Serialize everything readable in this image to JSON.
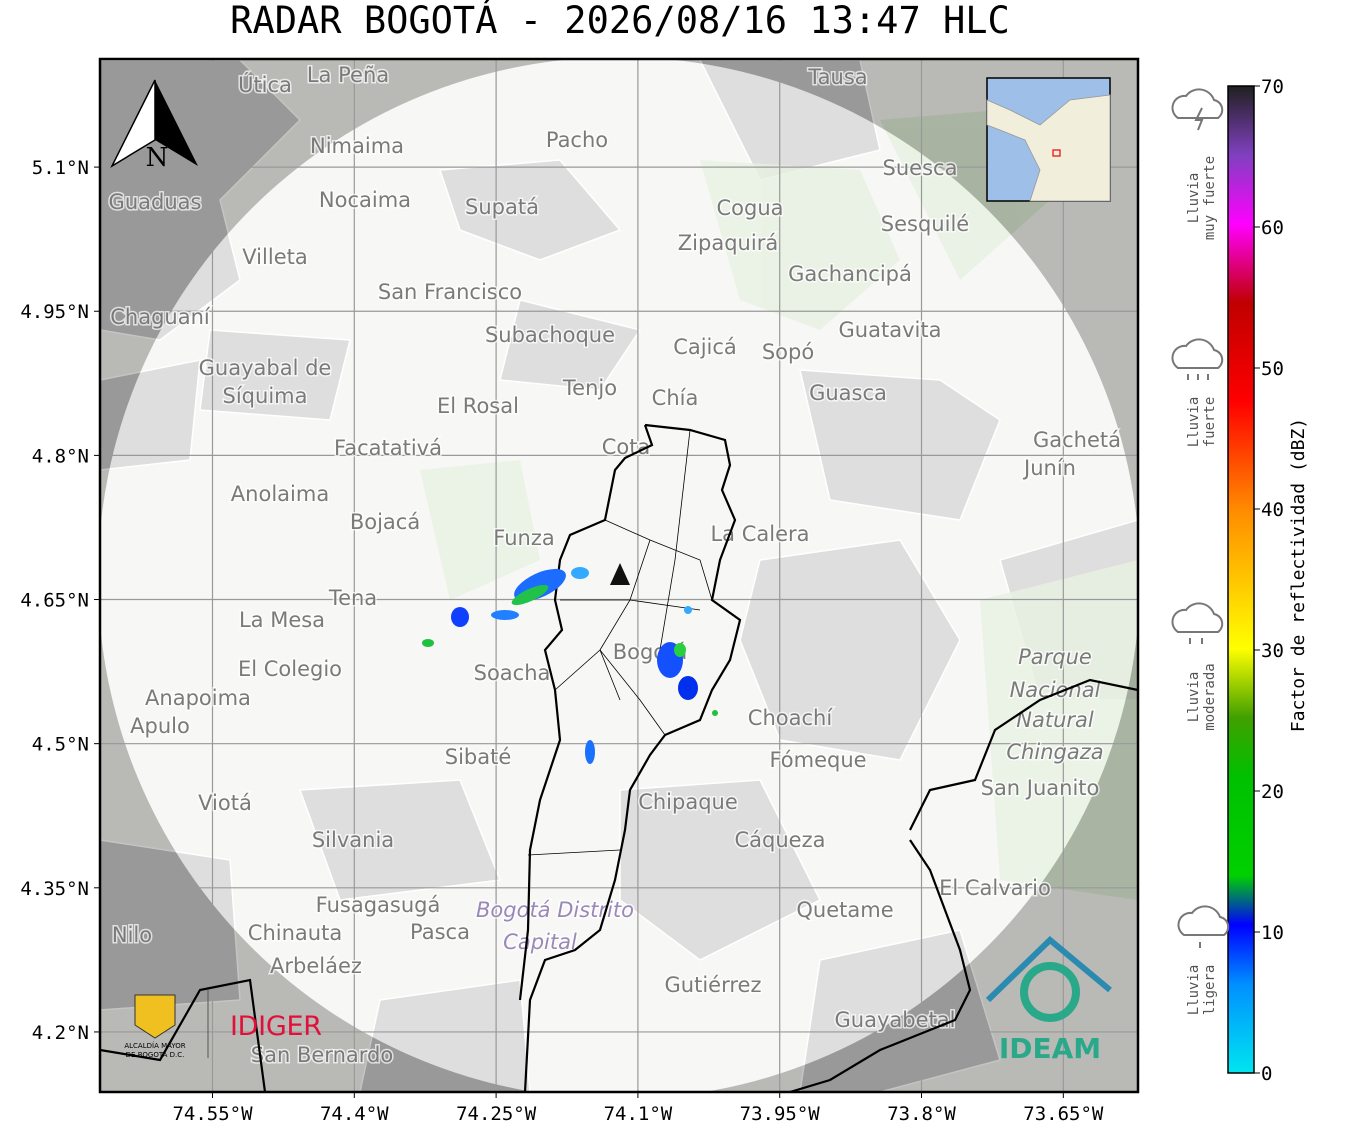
{
  "title": "RADAR BOGOTÁ - 2026/08/16 13:47 HLC",
  "map": {
    "xlim": [
      -74.669,
      -73.571
    ],
    "ylim": [
      4.1375,
      5.2125
    ],
    "grid": true,
    "north_label": "N",
    "xticks": [
      {
        "value": -74.55,
        "label": "74.55°W"
      },
      {
        "value": -74.4,
        "label": "74.4°W"
      },
      {
        "value": -74.25,
        "label": "74.25°W"
      },
      {
        "value": -74.1,
        "label": "74.1°W"
      },
      {
        "value": -73.95,
        "label": "73.95°W"
      },
      {
        "value": -73.8,
        "label": "73.8°W"
      },
      {
        "value": -73.65,
        "label": "73.65°W"
      }
    ],
    "yticks": [
      {
        "value": 5.1,
        "label": "5.1°N"
      },
      {
        "value": 4.95,
        "label": "4.95°N"
      },
      {
        "value": 4.8,
        "label": "4.8°N"
      },
      {
        "value": 4.65,
        "label": "4.65°N"
      },
      {
        "value": 4.5,
        "label": "4.5°N"
      },
      {
        "value": 4.35,
        "label": "4.35°N"
      },
      {
        "value": 4.2,
        "label": "4.2°N"
      }
    ],
    "places": [
      "La Peña",
      "Útica",
      "Tausa",
      "Pacho",
      "Nimaima",
      "Guaduas",
      "Nocaima",
      "Supatá",
      "Suesca",
      "Cogua",
      "Sesquilé",
      "Zipaquirá",
      "Villeta",
      "Gachancipá",
      "San Francisco",
      "Chaguaní",
      "Guatavita",
      "Subachoque",
      "Cajicá",
      "Sopó",
      "Guayabal de",
      "Síquima",
      "Tenjo",
      "El Rosal",
      "Chía",
      "Guasca",
      "Facatativá",
      "Cota",
      "Gachetá",
      "Junín",
      "Anolaima",
      "Bojacá",
      "Funza",
      "La Calera",
      "Tena",
      "La Mesa",
      "Bogotá",
      "Soacha",
      "El Colegio",
      "Anapoima",
      "Apulo",
      "Choachí",
      "Parque",
      "Nacional",
      "Natural",
      "Chingaza",
      "Sibaté",
      "Fómeque",
      "Viotá",
      "Chipaque",
      "San Juanito",
      "Silvania",
      "Cáqueza",
      "El Calvario",
      "Fusagasugá",
      "Quetame",
      "Bogotá Distrito",
      "Capital",
      "Nilo",
      "Chinauta",
      "Pasca",
      "Arbeláez",
      "Gutiérrez",
      "Guayabetal",
      "San Bernardo"
    ]
  },
  "colorbar": {
    "label": "Factor de reflectividad (dBZ)",
    "lim": [
      0,
      70
    ],
    "ticks": [
      0,
      10,
      20,
      30,
      40,
      50,
      60,
      70
    ],
    "categories": [
      [
        "Lluvia",
        "muy fuerte"
      ],
      [
        "Lluvia",
        "fuerte"
      ],
      [
        "Lluvia",
        "moderada"
      ],
      [
        "Lluvia",
        "ligera"
      ]
    ]
  },
  "logos": {
    "alcaldia": [
      "ALCALDÍA MAYOR",
      "DE BOGOTÁ D.C."
    ],
    "idiger": "IDIGER",
    "ideam": "IDEAM"
  }
}
